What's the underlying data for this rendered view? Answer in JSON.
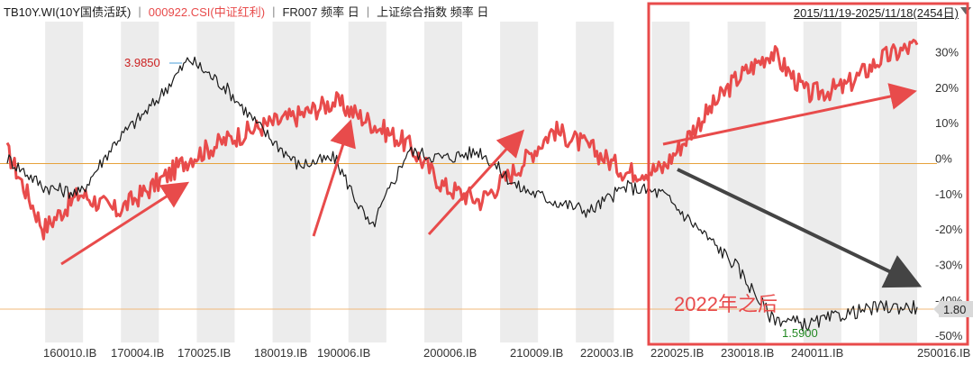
{
  "header": {
    "series": [
      {
        "label": "TB10Y.WI(10Y国债活跃)",
        "color": "#1a1a1a"
      },
      {
        "label": "000922.CSI(中证红利)",
        "color": "#e84b4b"
      },
      {
        "label": "FR007 频率 日",
        "color": "#1a1a1a"
      },
      {
        "label": "上证综合指数 频率 日",
        "color": "#1a1a1a"
      }
    ],
    "range": "2015/11/19-2025/11/18(2454日)"
  },
  "chart_data": {
    "type": "line",
    "x_labels": [
      "160010.IB",
      "170004.IB",
      "170025.IB",
      "180019.IB",
      "190006.IB",
      "200006.IB",
      "210009.IB",
      "220003.IB",
      "220025.IB",
      "230018.IB",
      "240011.IB",
      "250016.IB"
    ],
    "right_axis": {
      "unit": "%",
      "ticks": [
        "30%",
        "20%",
        "10%",
        "0%",
        "-10%",
        "-20%",
        "-30%",
        "-40%",
        "-50%"
      ],
      "values": [
        30,
        20,
        10,
        0,
        -10,
        -20,
        -30,
        -40,
        -50
      ],
      "ylim": [
        -52,
        37
      ]
    },
    "series": [
      {
        "name": "000922.CSI(中证红利)",
        "color": "#e84b4b",
        "x": [
          0,
          4,
          8,
          12,
          16,
          20,
          24,
          28,
          32,
          36,
          40,
          44,
          48,
          52,
          56,
          60,
          64,
          68,
          72,
          76,
          80,
          84,
          88,
          92,
          96,
          100
        ],
        "values": [
          2,
          -20,
          -10,
          -15,
          -8,
          0,
          5,
          9,
          12,
          16,
          10,
          4,
          -8,
          -12,
          -3,
          8,
          3,
          -4,
          -3,
          10,
          22,
          30,
          18,
          20,
          28,
          32
        ]
      },
      {
        "name": "TB10Y.WI(10Y国债活跃)",
        "color": "#1a1a1a",
        "x": [
          0,
          4,
          8,
          12,
          16,
          20,
          24,
          28,
          32,
          36,
          40,
          44,
          48,
          52,
          56,
          60,
          64,
          68,
          72,
          76,
          80,
          84,
          88,
          92,
          96,
          100
        ],
        "values": [
          0,
          -8,
          -10,
          5,
          15,
          28,
          20,
          8,
          -2,
          0,
          -20,
          2,
          0,
          2,
          -8,
          -12,
          -15,
          -8,
          -10,
          -20,
          -30,
          -45,
          -47,
          -44,
          -42,
          -42
        ]
      }
    ],
    "annotations": [
      {
        "text": "3.9850",
        "color": "#cc2222"
      },
      {
        "text": "1.5900",
        "color": "#228822"
      },
      {
        "text": "1.80",
        "color": "#222222"
      },
      {
        "text": "2022年之后",
        "color": "#e84b4b"
      }
    ]
  }
}
